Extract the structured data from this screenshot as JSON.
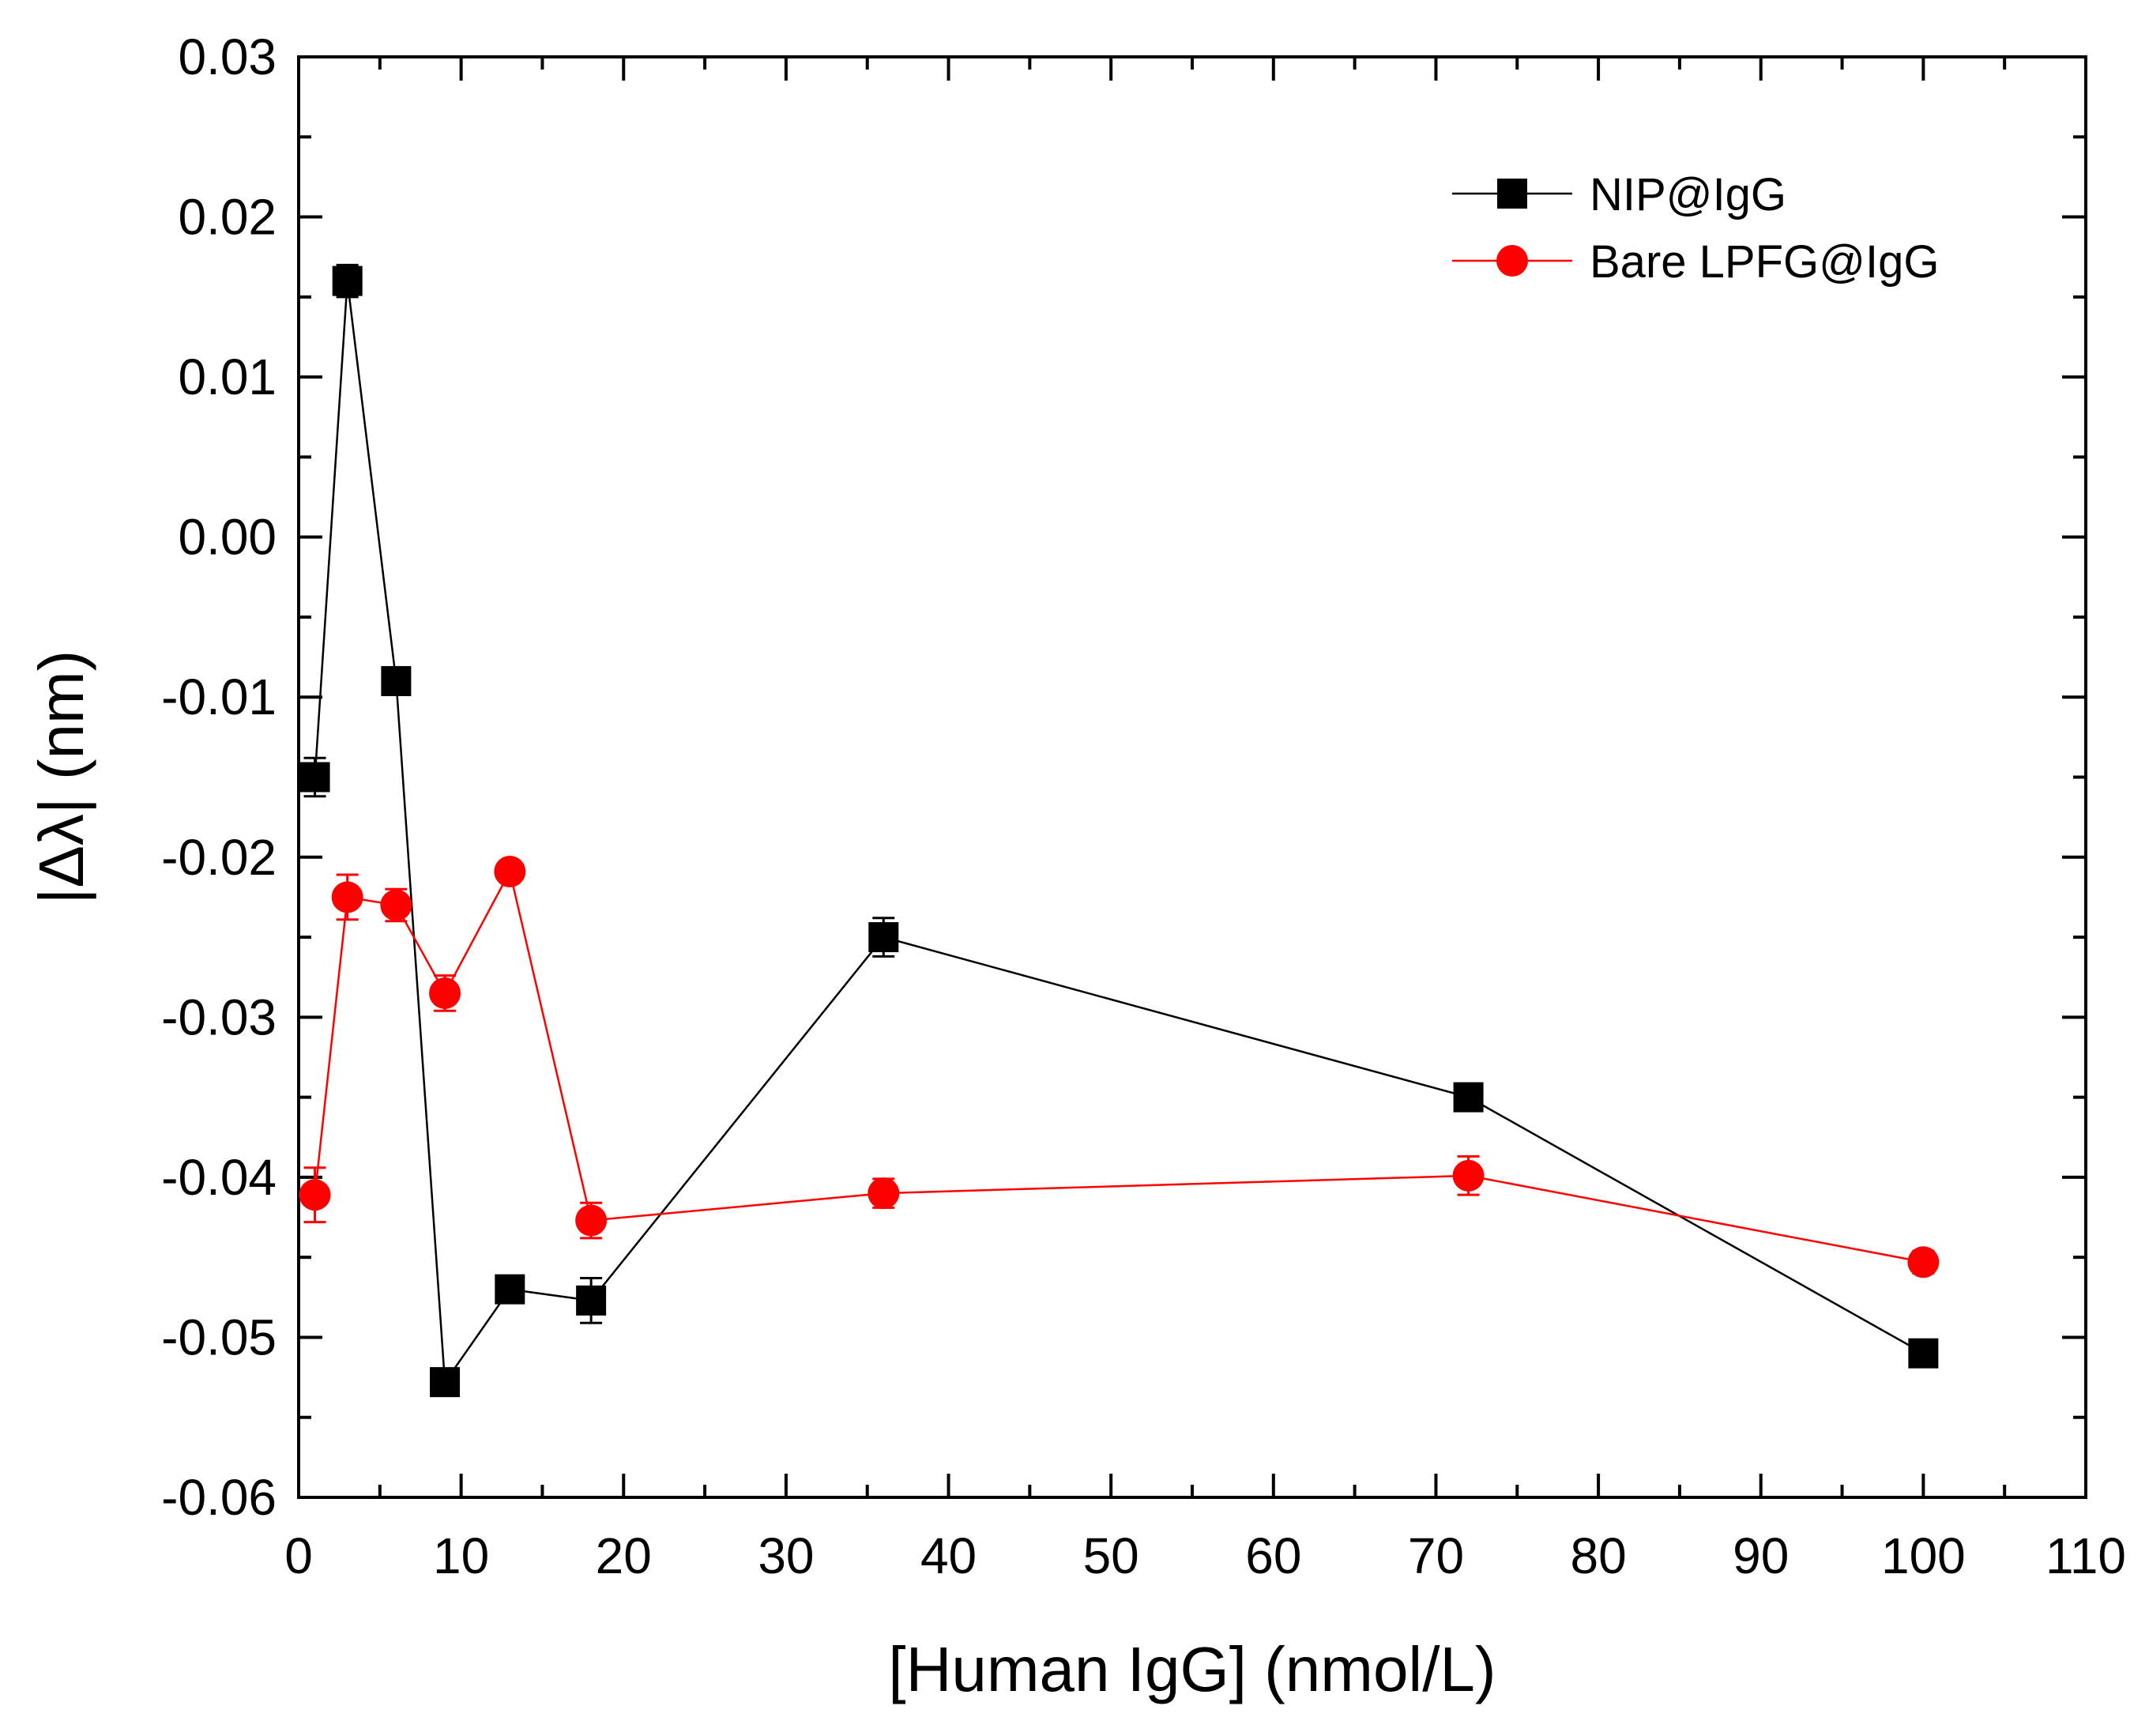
{
  "chart_data": {
    "type": "scatter",
    "title": "",
    "xlabel": "[Human IgG] (nmol/L)",
    "ylabel": "|Δλ| (nm)",
    "xlim": [
      0,
      110
    ],
    "ylim": [
      -0.06,
      0.03
    ],
    "x_ticks": [
      0,
      10,
      20,
      30,
      40,
      50,
      60,
      70,
      80,
      90,
      100,
      110
    ],
    "x_tick_labels": [
      "0",
      "10",
      "20",
      "30",
      "40",
      "50",
      "60",
      "70",
      "80",
      "90",
      "100",
      "110"
    ],
    "y_ticks": [
      -0.06,
      -0.05,
      -0.04,
      -0.03,
      -0.02,
      -0.01,
      0.0,
      0.01,
      0.02,
      0.03
    ],
    "y_tick_labels": [
      "-0.06",
      "-0.05",
      "-0.04",
      "-0.03",
      "-0.02",
      "-0.01",
      "0.00",
      "0.01",
      "0.02",
      "0.03"
    ],
    "grid": false,
    "legend_position": "top-right",
    "series": [
      {
        "name": "NIP@IgG",
        "color": "#000000",
        "marker": "square",
        "x": [
          1,
          3,
          6,
          9,
          13,
          18,
          36,
          72,
          100
        ],
        "y": [
          -0.015,
          0.016,
          -0.009,
          -0.0528,
          -0.047,
          -0.0477,
          -0.025,
          -0.035,
          -0.051
        ],
        "error": [
          0.0012,
          0.001,
          0.0008,
          0.0008,
          0.0008,
          0.0014,
          0.0012,
          0.0008,
          0.0008
        ]
      },
      {
        "name": "Bare LPFG@IgG",
        "color": "#ff0000",
        "marker": "circle",
        "x": [
          1,
          3,
          6,
          9,
          13,
          18,
          36,
          72,
          100
        ],
        "y": [
          -0.0411,
          -0.0225,
          -0.023,
          -0.0285,
          -0.0209,
          -0.0427,
          -0.041,
          -0.0399,
          -0.0453
        ],
        "error": [
          0.0017,
          0.0014,
          0.001,
          0.0011,
          0.0006,
          0.0011,
          0.0009,
          0.0012,
          0.0007
        ]
      }
    ]
  }
}
